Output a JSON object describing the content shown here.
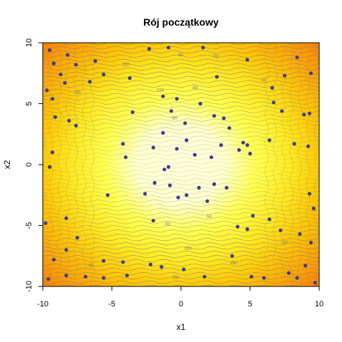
{
  "chart_data": {
    "type": "scatter",
    "title": "Rój początkowy",
    "xlabel": "x1",
    "ylabel": "x2",
    "xlim": [
      -10,
      10
    ],
    "ylim": [
      -10,
      10
    ],
    "x_ticks": [
      -10,
      -5,
      0,
      5,
      10
    ],
    "y_ticks": [
      -10,
      -5,
      0,
      5,
      10
    ],
    "background": "filled contour heatmap of the objective function (light yellow at center, orange/red toward edges) with gray contour lines",
    "contour_labels": [
      "-100",
      "-50",
      "50",
      "100",
      "150"
    ],
    "colors": {
      "point": "#3f3a8f",
      "center": "#ffffdc",
      "mid": "#ffff30",
      "outer": "#ffcc00",
      "edge": "#ff8c00",
      "contour": "#808080"
    },
    "series": [
      {
        "points": [
          [
            -9.5,
            9.4
          ],
          [
            -9.2,
            8.3
          ],
          [
            -8.7,
            7.4
          ],
          [
            -8.2,
            9.0
          ],
          [
            -9.7,
            6.1
          ],
          [
            -9.3,
            5.4
          ],
          [
            -8.4,
            6.7
          ],
          [
            -7.6,
            8.2
          ],
          [
            -6.6,
            6.8
          ],
          [
            -6.2,
            8.5
          ],
          [
            -5.6,
            7.4
          ],
          [
            -3.7,
            7.1
          ],
          [
            -2.3,
            9.5
          ],
          [
            -0.9,
            9.6
          ],
          [
            1.6,
            9.6
          ],
          [
            2.6,
            7.2
          ],
          [
            4.8,
            8.6
          ],
          [
            6.6,
            6.3
          ],
          [
            7.5,
            7.3
          ],
          [
            8.4,
            8.8
          ],
          [
            9.4,
            7.5
          ],
          [
            7.3,
            4.4
          ],
          [
            6.7,
            5.1
          ],
          [
            8.9,
            4.1
          ],
          [
            9.3,
            4.2
          ],
          [
            9.2,
            1.5
          ],
          [
            8.2,
            1.7
          ],
          [
            6.4,
            2.0
          ],
          [
            4.8,
            1.6
          ],
          [
            4.5,
            1.8
          ],
          [
            5.0,
            0.9
          ],
          [
            4.2,
            1.2
          ],
          [
            3.1,
            3.8
          ],
          [
            3.5,
            3.0
          ],
          [
            2.4,
            4.0
          ],
          [
            1.4,
            5.0
          ],
          [
            -0.3,
            5.4
          ],
          [
            -1.3,
            5.6
          ],
          [
            -0.7,
            4.4
          ],
          [
            0.3,
            3.4
          ],
          [
            -1.3,
            2.6
          ],
          [
            -3.5,
            4.3
          ],
          [
            -4.2,
            1.7
          ],
          [
            -4.0,
            0.6
          ],
          [
            -2.0,
            1.4
          ],
          [
            -0.3,
            1.3
          ],
          [
            0.4,
            2.0
          ],
          [
            1.0,
            0.8
          ],
          [
            2.2,
            0.6
          ],
          [
            2.9,
            1.6
          ],
          [
            -0.9,
            -0.2
          ],
          [
            -1.2,
            -0.4
          ],
          [
            1.3,
            -1.9
          ],
          [
            2.4,
            -1.6
          ],
          [
            3.3,
            -1.9
          ],
          [
            -1.9,
            -1.5
          ],
          [
            -2.6,
            -2.4
          ],
          [
            -0.8,
            -1.7
          ],
          [
            -0.2,
            -2.7
          ],
          [
            0.4,
            -2.5
          ],
          [
            -5.3,
            -2.5
          ],
          [
            -2.0,
            -4.6
          ],
          [
            1.9,
            -3.0
          ],
          [
            5.2,
            -4.2
          ],
          [
            6.4,
            -4.5
          ],
          [
            4.1,
            -5.1
          ],
          [
            4.8,
            -5.3
          ],
          [
            7.2,
            -5.4
          ],
          [
            8.6,
            -5.7
          ],
          [
            9.4,
            -6.4
          ],
          [
            -7.5,
            -6.0
          ],
          [
            -8.3,
            -7.0
          ],
          [
            -5.6,
            -7.9
          ],
          [
            -4.2,
            -8.0
          ],
          [
            -2.2,
            -8.2
          ],
          [
            -1.4,
            -8.4
          ],
          [
            0.2,
            -8.6
          ],
          [
            -3.9,
            -9.1
          ],
          [
            -5.6,
            -9.3
          ],
          [
            -6.9,
            -9.2
          ],
          [
            -8.3,
            -9.1
          ],
          [
            1.7,
            -9.2
          ],
          [
            3.7,
            -7.5
          ],
          [
            5.1,
            -9.2
          ],
          [
            6.0,
            -9.3
          ],
          [
            7.8,
            -8.9
          ],
          [
            8.4,
            -9.3
          ],
          [
            9.0,
            -8.3
          ],
          [
            9.7,
            -9.7
          ],
          [
            -9.8,
            -4.8
          ],
          [
            -9.6,
            -9.4
          ],
          [
            -9.2,
            -7.8
          ],
          [
            -9.3,
            1.0
          ],
          [
            -9.5,
            -0.2
          ],
          [
            -8.3,
            -4.4
          ],
          [
            -7.6,
            3.2
          ],
          [
            -8.1,
            3.6
          ],
          [
            9.3,
            -2.4
          ],
          [
            9.6,
            -3.6
          ],
          [
            -9.1,
            3.9
          ]
        ]
      }
    ]
  }
}
